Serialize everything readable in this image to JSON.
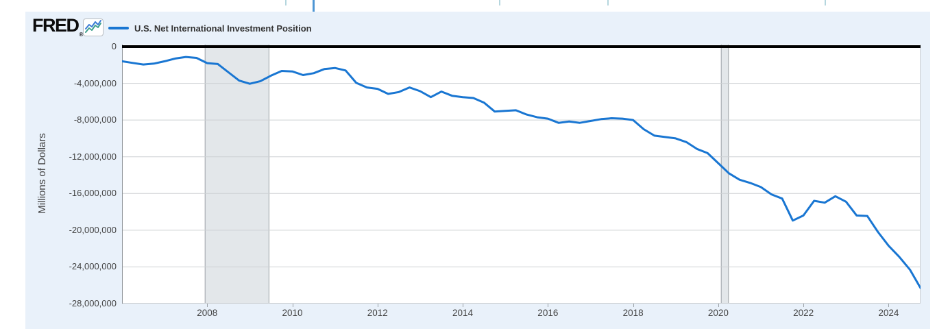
{
  "brand": {
    "logo_text": "FRED",
    "registered": "®"
  },
  "legend": {
    "label": "U.S. Net International Investment Position"
  },
  "colors": {
    "line": "#1976d2",
    "card_background": "#e9f1fa",
    "recession_band": "#e3e7ea",
    "recession_band_border": "#9aa0a5",
    "gridline": "#cdd0d3",
    "zero_line": "#000000",
    "tick_text": "#424242",
    "slider_tick": "#b5d6de",
    "slider_handle": "#4e96d4"
  },
  "chart_data": {
    "type": "line",
    "title": "U.S. Net International Investment Position",
    "ylabel": "Millions of Dollars",
    "xlabel": "",
    "legend_position": "top-left",
    "grid": "horizontal",
    "xlim": [
      2006,
      2024.75
    ],
    "ylim": [
      -28000000,
      0
    ],
    "x_ticks": [
      2008,
      2010,
      2012,
      2014,
      2016,
      2018,
      2020,
      2022,
      2024
    ],
    "y_ticks": [
      {
        "value": 0,
        "label": "0"
      },
      {
        "value": -4000000,
        "label": "-4,000,000"
      },
      {
        "value": -8000000,
        "label": "-8,000,000"
      },
      {
        "value": -12000000,
        "label": "-12,000,000"
      },
      {
        "value": -16000000,
        "label": "-16,000,000"
      },
      {
        "value": -20000000,
        "label": "-20,000,000"
      },
      {
        "value": -24000000,
        "label": "-24,000,000"
      },
      {
        "value": -28000000,
        "label": "-28,000,000"
      }
    ],
    "recession_bands": [
      [
        2007.95,
        2009.45
      ],
      [
        2020.07,
        2020.24
      ]
    ],
    "series": [
      {
        "name": "U.S. Net International Investment Position",
        "frequency": "quarterly",
        "x": [
          2006.0,
          2006.25,
          2006.5,
          2006.75,
          2007.0,
          2007.25,
          2007.5,
          2007.75,
          2008.0,
          2008.25,
          2008.5,
          2008.75,
          2009.0,
          2009.25,
          2009.5,
          2009.75,
          2010.0,
          2010.25,
          2010.5,
          2010.75,
          2011.0,
          2011.25,
          2011.5,
          2011.75,
          2012.0,
          2012.25,
          2012.5,
          2012.75,
          2013.0,
          2013.25,
          2013.5,
          2013.75,
          2014.0,
          2014.25,
          2014.5,
          2014.75,
          2015.0,
          2015.25,
          2015.5,
          2015.75,
          2016.0,
          2016.25,
          2016.5,
          2016.75,
          2017.0,
          2017.25,
          2017.5,
          2017.75,
          2018.0,
          2018.25,
          2018.5,
          2018.75,
          2019.0,
          2019.25,
          2019.5,
          2019.75,
          2020.0,
          2020.25,
          2020.5,
          2020.75,
          2021.0,
          2021.25,
          2021.5,
          2021.75,
          2022.0,
          2022.25,
          2022.5,
          2022.75,
          2023.0,
          2023.25,
          2023.5,
          2023.75,
          2024.0,
          2024.25,
          2024.5,
          2024.75
        ],
        "values": [
          -1600000,
          -1780000,
          -1950000,
          -1850000,
          -1600000,
          -1300000,
          -1130000,
          -1230000,
          -1800000,
          -1900000,
          -2800000,
          -3700000,
          -4050000,
          -3760000,
          -3160000,
          -2650000,
          -2700000,
          -3100000,
          -2900000,
          -2450000,
          -2330000,
          -2600000,
          -3950000,
          -4450000,
          -4600000,
          -5150000,
          -4950000,
          -4450000,
          -4850000,
          -5500000,
          -4900000,
          -5350000,
          -5500000,
          -5600000,
          -6100000,
          -7070000,
          -7000000,
          -6940000,
          -7400000,
          -7700000,
          -7850000,
          -8300000,
          -8150000,
          -8300000,
          -8100000,
          -7900000,
          -7800000,
          -7850000,
          -8000000,
          -9000000,
          -9700000,
          -9850000,
          -10000000,
          -10400000,
          -11150000,
          -11600000,
          -12700000,
          -13800000,
          -14500000,
          -14850000,
          -15300000,
          -16100000,
          -16550000,
          -18950000,
          -18400000,
          -16800000,
          -17000000,
          -16300000,
          -16900000,
          -18400000,
          -18450000,
          -20200000,
          -21700000,
          -22900000,
          -24300000,
          -26300000
        ]
      }
    ]
  }
}
